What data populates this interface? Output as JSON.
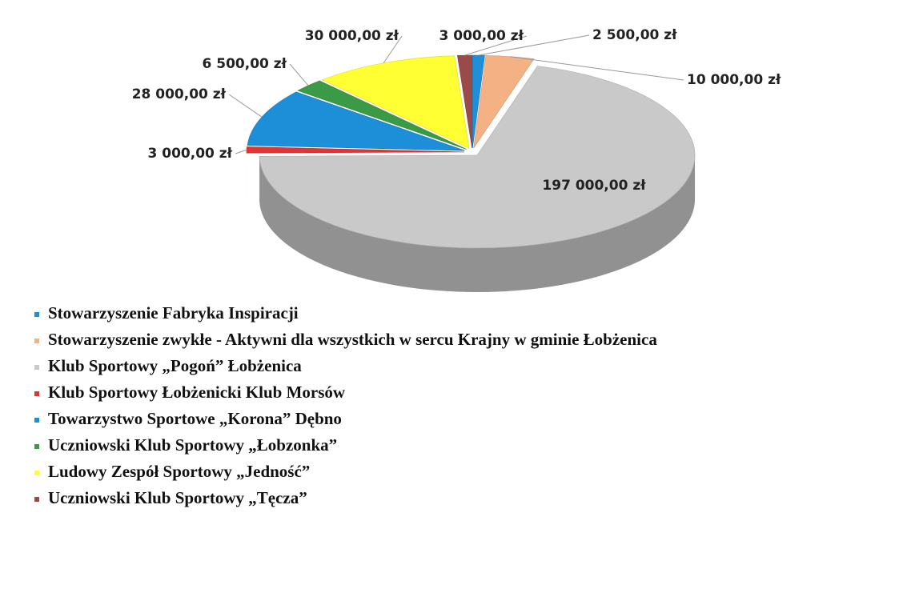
{
  "chart_data": {
    "type": "pie",
    "series": [
      {
        "name": "Stowarzyszenie Fabryka Inspiracji",
        "color": "#1f8fd8",
        "values": [
          2500
        ],
        "value_labels": [
          "2 500,00 zł"
        ]
      },
      {
        "name": "Stowarzyszenie zwykłe - Aktywni dla wszystkich w sercu Krajny w gminie Łobżenica",
        "color": "#f4b183",
        "values": [
          10000
        ],
        "value_labels": [
          "10 000,00 zł"
        ]
      },
      {
        "name": "Klub Sportowy „Pogoń” Łobżenica",
        "color": "#c9c9c9",
        "values": [
          197000
        ],
        "value_labels": [
          "197 000,00 zł"
        ]
      },
      {
        "name": "Klub Sportowy Łobżenicki Klub Morsów",
        "color": "#e03535",
        "values": [
          3000
        ],
        "value_labels": [
          "3 000,00 zł"
        ]
      },
      {
        "name": "Towarzystwo Sportowe „Korona” Dębno",
        "color": "#1c8fd8",
        "values": [
          28000
        ],
        "value_labels": [
          "28 000,00 zł"
        ]
      },
      {
        "name": "Uczniowski Klub Sportowy „Łobzonka”",
        "color": "#3a9a45",
        "values": [
          6500
        ],
        "value_labels": [
          "6 500,00 zł"
        ]
      },
      {
        "name": "Ludowy Zespół Sportowy „Jedność”",
        "color": "#ffff33",
        "values": [
          30000
        ],
        "value_labels": [
          "30 000,00 zł"
        ]
      },
      {
        "name": "Uczniowski Klub Sportowy „Tęcza”",
        "color": "#9b4a4a",
        "values": [
          3000
        ],
        "value_labels": [
          "3 000,00 zł"
        ]
      }
    ]
  }
}
